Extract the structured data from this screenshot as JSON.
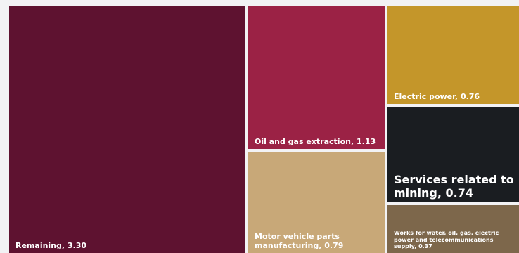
{
  "chart_data": {
    "type": "treemap",
    "items": [
      {
        "name": "Remaining",
        "value": 3.3,
        "label": "Remaining, 3.30",
        "color": "#5e1230"
      },
      {
        "name": "Oil and gas extraction",
        "value": 1.13,
        "label": "Oil and gas extraction, 1.13",
        "color": "#9b2245"
      },
      {
        "name": "Electric power",
        "value": 0.76,
        "label": "Electric power, 0.76",
        "color": "#c4962a"
      },
      {
        "name": "Services related to mining",
        "value": 0.74,
        "label": "Services related to mining, 0.74",
        "color": "#1a1d21"
      },
      {
        "name": "Motor vehicle parts manufacturing",
        "value": 0.79,
        "label": "Motor vehicle parts manufacturing, 0.79",
        "color": "#c8a878"
      },
      {
        "name": "Works for water, oil, gas, electric power and telecommunications supply",
        "value": 0.37,
        "label": "Works for water, oil, gas, electric power and telecommunications supply, 0.37",
        "color": "#7d674b"
      }
    ]
  }
}
